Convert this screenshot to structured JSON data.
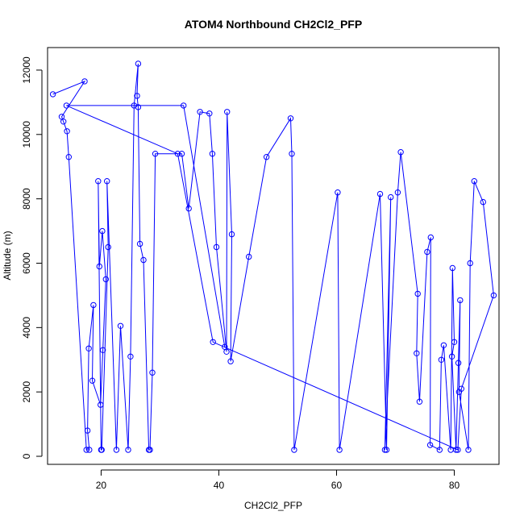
{
  "chart_data": {
    "type": "line",
    "title": "ATOM4 Northbound CH2Cl2_PFP",
    "xlabel": "CH2Cl2_PFP",
    "ylabel": "Altitude (m)",
    "xlim": [
      10.9,
      87.6
    ],
    "ylim": [
      -250,
      12700
    ],
    "xticks": [
      20,
      40,
      60,
      80
    ],
    "yticks": [
      0,
      2000,
      4000,
      6000,
      8000,
      10000,
      12000
    ],
    "xtick_labels": [
      "20",
      "40",
      "60",
      "80"
    ],
    "ytick_labels": [
      "0",
      "2000",
      "4000",
      "6000",
      "8000",
      "10000",
      "12000"
    ],
    "grid": false,
    "color": "#0000ff",
    "series": [
      {
        "points": [
          [
            11.8,
            11250
          ],
          [
            17.2,
            11650
          ],
          [
            13.3,
            10550
          ],
          [
            13.6,
            10400
          ],
          [
            14.2,
            10100
          ],
          [
            14.5,
            9300
          ],
          [
            17.5,
            200
          ],
          [
            18.0,
            200
          ],
          [
            17.7,
            800
          ],
          [
            17.9,
            3350
          ],
          [
            18.7,
            4700
          ],
          [
            18.5,
            2350
          ],
          [
            19.9,
            1600
          ],
          [
            20.3,
            3300
          ],
          [
            20.8,
            5500
          ],
          [
            20.2,
            7000
          ],
          [
            19.7,
            5900
          ],
          [
            19.5,
            8550
          ],
          [
            20.0,
            200
          ],
          [
            20.1,
            200
          ],
          [
            21.2,
            6500
          ],
          [
            21.0,
            8550
          ],
          [
            22.6,
            200
          ],
          [
            23.3,
            4050
          ],
          [
            24.6,
            200
          ],
          [
            25.0,
            3100
          ],
          [
            25.6,
            10900
          ],
          [
            26.3,
            12200
          ],
          [
            26.1,
            11200
          ],
          [
            26.3,
            10850
          ],
          [
            26.6,
            6600
          ],
          [
            27.2,
            6100
          ],
          [
            28.1,
            200
          ],
          [
            28.3,
            200
          ],
          [
            28.7,
            2600
          ],
          [
            29.2,
            9400
          ],
          [
            33.7,
            9400
          ],
          [
            34.9,
            7700
          ],
          [
            36.8,
            10700
          ],
          [
            38.4,
            10650
          ],
          [
            38.9,
            9400
          ],
          [
            39.6,
            6500
          ],
          [
            41.3,
            3250
          ],
          [
            41.4,
            10700
          ],
          [
            42.2,
            6900
          ],
          [
            42.0,
            2950
          ],
          [
            45.1,
            6200
          ],
          [
            48.1,
            9300
          ],
          [
            52.2,
            10500
          ],
          [
            52.4,
            9400
          ],
          [
            52.8,
            200
          ],
          [
            60.2,
            8200
          ],
          [
            60.5,
            200
          ],
          [
            67.4,
            8150
          ],
          [
            68.5,
            200
          ],
          [
            69.2,
            8050
          ],
          [
            68.2,
            200
          ],
          [
            70.4,
            8200
          ],
          [
            70.9,
            9450
          ],
          [
            73.8,
            5050
          ],
          [
            73.6,
            3200
          ],
          [
            74.1,
            1700
          ],
          [
            75.4,
            6350
          ],
          [
            76.0,
            6800
          ],
          [
            75.9,
            350
          ],
          [
            77.5,
            200
          ],
          [
            77.8,
            3000
          ],
          [
            78.2,
            3450
          ],
          [
            79.4,
            200
          ],
          [
            79.7,
            5850
          ],
          [
            80.0,
            3550
          ],
          [
            79.6,
            3100
          ],
          [
            80.3,
            200
          ],
          [
            80.7,
            2900
          ],
          [
            81.0,
            4850
          ],
          [
            80.8,
            2000
          ],
          [
            82.4,
            200
          ],
          [
            82.7,
            6000
          ],
          [
            83.4,
            8550
          ],
          [
            84.9,
            7900
          ],
          [
            86.7,
            5000
          ],
          [
            81.2,
            2100
          ],
          [
            80.6,
            200
          ],
          [
            39.0,
            3550
          ],
          [
            33.0,
            9400
          ],
          [
            14.1,
            10900
          ],
          [
            34.0,
            10900
          ],
          [
            41.0,
            3400
          ]
        ]
      }
    ]
  }
}
